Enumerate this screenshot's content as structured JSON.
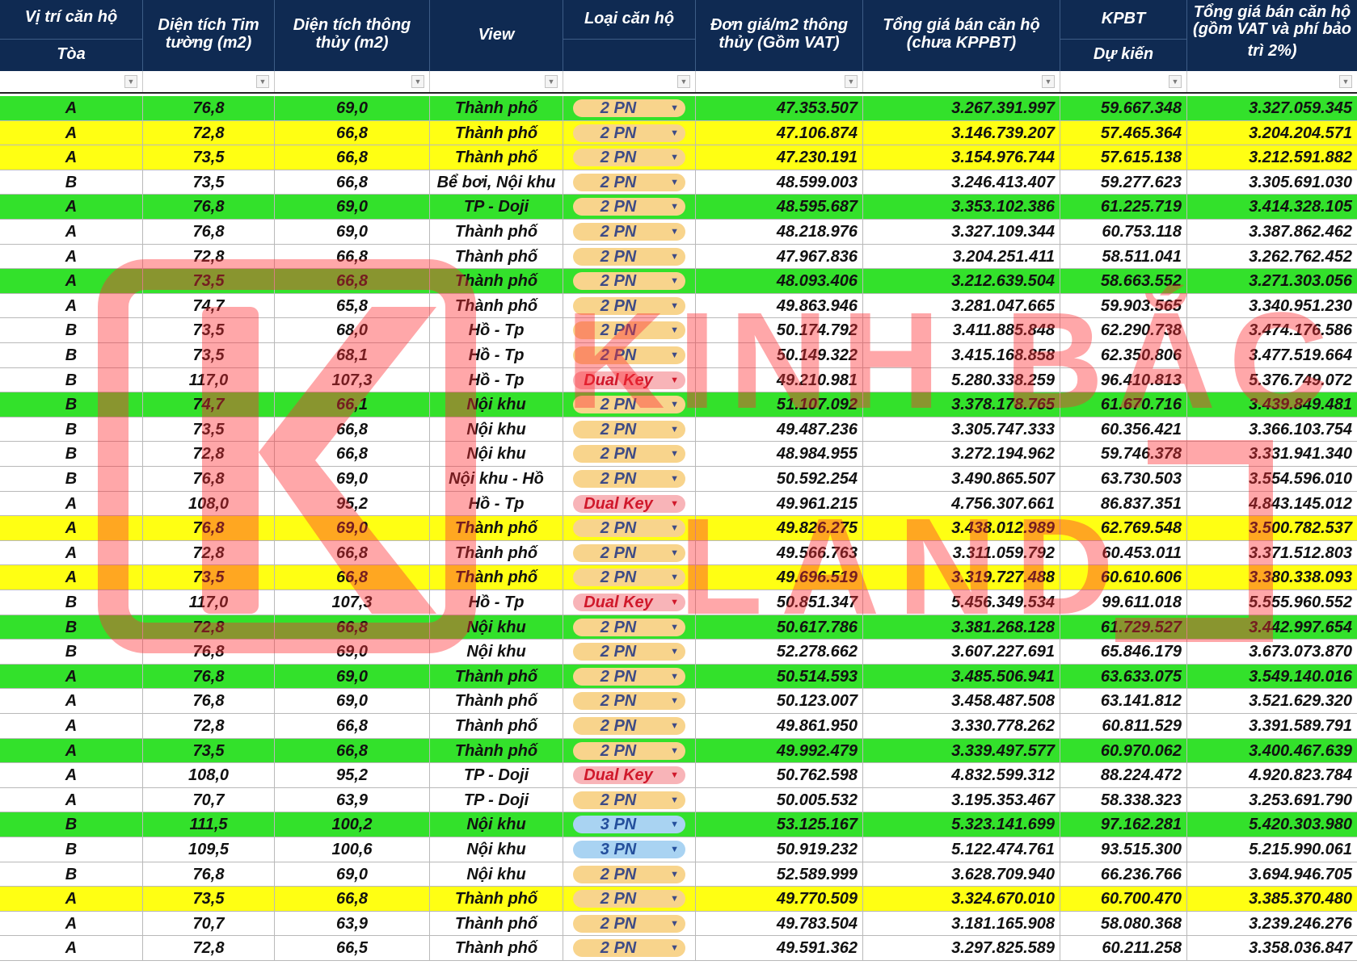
{
  "headers": [
    {
      "line1": "Vị trí căn hộ",
      "line2": "Tòa"
    },
    {
      "line1": "Diện tích Tim",
      "line2": "tường (m2)"
    },
    {
      "line1": "Diện tích thông",
      "line2": "thủy (m2)"
    },
    {
      "line1": "View",
      "line2": ""
    },
    {
      "line1": "Loại căn hộ",
      "line2": ""
    },
    {
      "line1": "Đơn giá/m2 thông",
      "line2": "thủy (Gồm VAT)"
    },
    {
      "line1": "Tổng giá bán căn hộ",
      "line2": "(chưa  KPPBT)"
    },
    {
      "line1": "KPBT",
      "line2": "Dự kiến"
    },
    {
      "line1": "Tổng giá bán căn hộ",
      "line2": "(gồm VAT và phí bảo",
      "line3": "trì 2%)"
    }
  ],
  "watermark": "KINH BẮC LAND",
  "row_colors": {
    "green": "#33e12b",
    "yellow": "#ffff13",
    "white": "#ffffff",
    "header": "#0f2a52"
  },
  "rows": [
    {
      "color": "green",
      "toa": "A",
      "dt_tim": "76,8",
      "dt_thong": "69,0",
      "view": "Thành phố",
      "loai": "2 PN",
      "don_gia": "47.353.507",
      "tong_chua": "3.267.391.997",
      "kpbt": "59.667.348",
      "tong_gom": "3.327.059.345"
    },
    {
      "color": "yellow",
      "toa": "A",
      "dt_tim": "72,8",
      "dt_thong": "66,8",
      "view": "Thành phố",
      "loai": "2 PN",
      "don_gia": "47.106.874",
      "tong_chua": "3.146.739.207",
      "kpbt": "57.465.364",
      "tong_gom": "3.204.204.571"
    },
    {
      "color": "yellow",
      "toa": "A",
      "dt_tim": "73,5",
      "dt_thong": "66,8",
      "view": "Thành phố",
      "loai": "2 PN",
      "don_gia": "47.230.191",
      "tong_chua": "3.154.976.744",
      "kpbt": "57.615.138",
      "tong_gom": "3.212.591.882"
    },
    {
      "color": "white",
      "toa": "B",
      "dt_tim": "73,5",
      "dt_thong": "66,8",
      "view": "Bể bơi, Nội khu",
      "loai": "2 PN",
      "don_gia": "48.599.003",
      "tong_chua": "3.246.413.407",
      "kpbt": "59.277.623",
      "tong_gom": "3.305.691.030"
    },
    {
      "color": "green",
      "toa": "A",
      "dt_tim": "76,8",
      "dt_thong": "69,0",
      "view": "TP - Doji",
      "loai": "2 PN",
      "don_gia": "48.595.687",
      "tong_chua": "3.353.102.386",
      "kpbt": "61.225.719",
      "tong_gom": "3.414.328.105"
    },
    {
      "color": "white",
      "toa": "A",
      "dt_tim": "76,8",
      "dt_thong": "69,0",
      "view": "Thành phố",
      "loai": "2 PN",
      "don_gia": "48.218.976",
      "tong_chua": "3.327.109.344",
      "kpbt": "60.753.118",
      "tong_gom": "3.387.862.462"
    },
    {
      "color": "white",
      "toa": "A",
      "dt_tim": "72,8",
      "dt_thong": "66,8",
      "view": "Thành phố",
      "loai": "2 PN",
      "don_gia": "47.967.836",
      "tong_chua": "3.204.251.411",
      "kpbt": "58.511.041",
      "tong_gom": "3.262.762.452"
    },
    {
      "color": "green",
      "toa": "A",
      "dt_tim": "73,5",
      "dt_thong": "66,8",
      "view": "Thành phố",
      "loai": "2 PN",
      "don_gia": "48.093.406",
      "tong_chua": "3.212.639.504",
      "kpbt": "58.663.552",
      "tong_gom": "3.271.303.056"
    },
    {
      "color": "white",
      "toa": "A",
      "dt_tim": "74,7",
      "dt_thong": "65,8",
      "view": "Thành phố",
      "loai": "2 PN",
      "don_gia": "49.863.946",
      "tong_chua": "3.281.047.665",
      "kpbt": "59.903.565",
      "tong_gom": "3.340.951.230"
    },
    {
      "color": "white",
      "toa": "B",
      "dt_tim": "73,5",
      "dt_thong": "68,0",
      "view": "Hồ - Tp",
      "loai": "2 PN",
      "don_gia": "50.174.792",
      "tong_chua": "3.411.885.848",
      "kpbt": "62.290.738",
      "tong_gom": "3.474.176.586"
    },
    {
      "color": "white",
      "toa": "B",
      "dt_tim": "73,5",
      "dt_thong": "68,1",
      "view": "Hồ - Tp",
      "loai": "2 PN",
      "don_gia": "50.149.322",
      "tong_chua": "3.415.168.858",
      "kpbt": "62.350.806",
      "tong_gom": "3.477.519.664"
    },
    {
      "color": "white",
      "toa": "B",
      "dt_tim": "117,0",
      "dt_thong": "107,3",
      "view": "Hồ - Tp",
      "loai": "Dual Key",
      "don_gia": "49.210.981",
      "tong_chua": "5.280.338.259",
      "kpbt": "96.410.813",
      "tong_gom": "5.376.749.072"
    },
    {
      "color": "green",
      "toa": "B",
      "dt_tim": "74,7",
      "dt_thong": "66,1",
      "view": "Nội khu",
      "loai": "2 PN",
      "don_gia": "51.107.092",
      "tong_chua": "3.378.178.765",
      "kpbt": "61.670.716",
      "tong_gom": "3.439.849.481"
    },
    {
      "color": "white",
      "toa": "B",
      "dt_tim": "73,5",
      "dt_thong": "66,8",
      "view": "Nội khu",
      "loai": "2 PN",
      "don_gia": "49.487.236",
      "tong_chua": "3.305.747.333",
      "kpbt": "60.356.421",
      "tong_gom": "3.366.103.754"
    },
    {
      "color": "white",
      "toa": "B",
      "dt_tim": "72,8",
      "dt_thong": "66,8",
      "view": "Nội khu",
      "loai": "2 PN",
      "don_gia": "48.984.955",
      "tong_chua": "3.272.194.962",
      "kpbt": "59.746.378",
      "tong_gom": "3.331.941.340"
    },
    {
      "color": "white",
      "toa": "B",
      "dt_tim": "76,8",
      "dt_thong": "69,0",
      "view": "Nội khu - Hồ",
      "loai": "2 PN",
      "don_gia": "50.592.254",
      "tong_chua": "3.490.865.507",
      "kpbt": "63.730.503",
      "tong_gom": "3.554.596.010"
    },
    {
      "color": "white",
      "toa": "A",
      "dt_tim": "108,0",
      "dt_thong": "95,2",
      "view": "Hồ - Tp",
      "loai": "Dual Key",
      "don_gia": "49.961.215",
      "tong_chua": "4.756.307.661",
      "kpbt": "86.837.351",
      "tong_gom": "4.843.145.012"
    },
    {
      "color": "yellow",
      "toa": "A",
      "dt_tim": "76,8",
      "dt_thong": "69,0",
      "view": "Thành phố",
      "loai": "2 PN",
      "don_gia": "49.826.275",
      "tong_chua": "3.438.012.989",
      "kpbt": "62.769.548",
      "tong_gom": "3.500.782.537"
    },
    {
      "color": "white",
      "toa": "A",
      "dt_tim": "72,8",
      "dt_thong": "66,8",
      "view": "Thành phố",
      "loai": "2 PN",
      "don_gia": "49.566.763",
      "tong_chua": "3.311.059.792",
      "kpbt": "60.453.011",
      "tong_gom": "3.371.512.803"
    },
    {
      "color": "yellow",
      "toa": "A",
      "dt_tim": "73,5",
      "dt_thong": "66,8",
      "view": "Thành phố",
      "loai": "2 PN",
      "don_gia": "49.696.519",
      "tong_chua": "3.319.727.488",
      "kpbt": "60.610.606",
      "tong_gom": "3.380.338.093"
    },
    {
      "color": "white",
      "toa": "B",
      "dt_tim": "117,0",
      "dt_thong": "107,3",
      "view": "Hồ - Tp",
      "loai": "Dual Key",
      "don_gia": "50.851.347",
      "tong_chua": "5.456.349.534",
      "kpbt": "99.611.018",
      "tong_gom": "5.555.960.552"
    },
    {
      "color": "green",
      "toa": "B",
      "dt_tim": "72,8",
      "dt_thong": "66,8",
      "view": "Nội khu",
      "loai": "2 PN",
      "don_gia": "50.617.786",
      "tong_chua": "3.381.268.128",
      "kpbt": "61.729.527",
      "tong_gom": "3.442.997.654"
    },
    {
      "color": "white",
      "toa": "B",
      "dt_tim": "76,8",
      "dt_thong": "69,0",
      "view": "Nội khu",
      "loai": "2 PN",
      "don_gia": "52.278.662",
      "tong_chua": "3.607.227.691",
      "kpbt": "65.846.179",
      "tong_gom": "3.673.073.870"
    },
    {
      "color": "green",
      "toa": "A",
      "dt_tim": "76,8",
      "dt_thong": "69,0",
      "view": "Thành phố",
      "loai": "2 PN",
      "don_gia": "50.514.593",
      "tong_chua": "3.485.506.941",
      "kpbt": "63.633.075",
      "tong_gom": "3.549.140.016"
    },
    {
      "color": "white",
      "toa": "A",
      "dt_tim": "76,8",
      "dt_thong": "69,0",
      "view": "Thành phố",
      "loai": "2 PN",
      "don_gia": "50.123.007",
      "tong_chua": "3.458.487.508",
      "kpbt": "63.141.812",
      "tong_gom": "3.521.629.320"
    },
    {
      "color": "white",
      "toa": "A",
      "dt_tim": "72,8",
      "dt_thong": "66,8",
      "view": "Thành phố",
      "loai": "2 PN",
      "don_gia": "49.861.950",
      "tong_chua": "3.330.778.262",
      "kpbt": "60.811.529",
      "tong_gom": "3.391.589.791"
    },
    {
      "color": "green",
      "toa": "A",
      "dt_tim": "73,5",
      "dt_thong": "66,8",
      "view": "Thành phố",
      "loai": "2 PN",
      "don_gia": "49.992.479",
      "tong_chua": "3.339.497.577",
      "kpbt": "60.970.062",
      "tong_gom": "3.400.467.639"
    },
    {
      "color": "white",
      "toa": "A",
      "dt_tim": "108,0",
      "dt_thong": "95,2",
      "view": "TP - Doji",
      "loai": "Dual Key",
      "don_gia": "50.762.598",
      "tong_chua": "4.832.599.312",
      "kpbt": "88.224.472",
      "tong_gom": "4.920.823.784"
    },
    {
      "color": "white",
      "toa": "A",
      "dt_tim": "70,7",
      "dt_thong": "63,9",
      "view": "TP - Doji",
      "loai": "2 PN",
      "don_gia": "50.005.532",
      "tong_chua": "3.195.353.467",
      "kpbt": "58.338.323",
      "tong_gom": "3.253.691.790"
    },
    {
      "color": "green",
      "toa": "B",
      "dt_tim": "111,5",
      "dt_thong": "100,2",
      "view": "Nội khu",
      "loai": "3 PN",
      "don_gia": "53.125.167",
      "tong_chua": "5.323.141.699",
      "kpbt": "97.162.281",
      "tong_gom": "5.420.303.980"
    },
    {
      "color": "white",
      "toa": "B",
      "dt_tim": "109,5",
      "dt_thong": "100,6",
      "view": "Nội khu",
      "loai": "3 PN",
      "don_gia": "50.919.232",
      "tong_chua": "5.122.474.761",
      "kpbt": "93.515.300",
      "tong_gom": "5.215.990.061"
    },
    {
      "color": "white",
      "toa": "B",
      "dt_tim": "76,8",
      "dt_thong": "69,0",
      "view": "Nội khu",
      "loai": "2 PN",
      "don_gia": "52.589.999",
      "tong_chua": "3.628.709.940",
      "kpbt": "66.236.766",
      "tong_gom": "3.694.946.705"
    },
    {
      "color": "yellow",
      "toa": "A",
      "dt_tim": "73,5",
      "dt_thong": "66,8",
      "view": "Thành phố",
      "loai": "2 PN",
      "don_gia": "49.770.509",
      "tong_chua": "3.324.670.010",
      "kpbt": "60.700.470",
      "tong_gom": "3.385.370.480"
    },
    {
      "color": "white",
      "toa": "A",
      "dt_tim": "70,7",
      "dt_thong": "63,9",
      "view": "Thành phố",
      "loai": "2 PN",
      "don_gia": "49.783.504",
      "tong_chua": "3.181.165.908",
      "kpbt": "58.080.368",
      "tong_gom": "3.239.246.276"
    },
    {
      "color": "white",
      "toa": "A",
      "dt_tim": "72,8",
      "dt_thong": "66,5",
      "view": "Thành phố",
      "loai": "2 PN",
      "don_gia": "49.591.362",
      "tong_chua": "3.297.825.589",
      "kpbt": "60.211.258",
      "tong_gom": "3.358.036.847"
    }
  ]
}
